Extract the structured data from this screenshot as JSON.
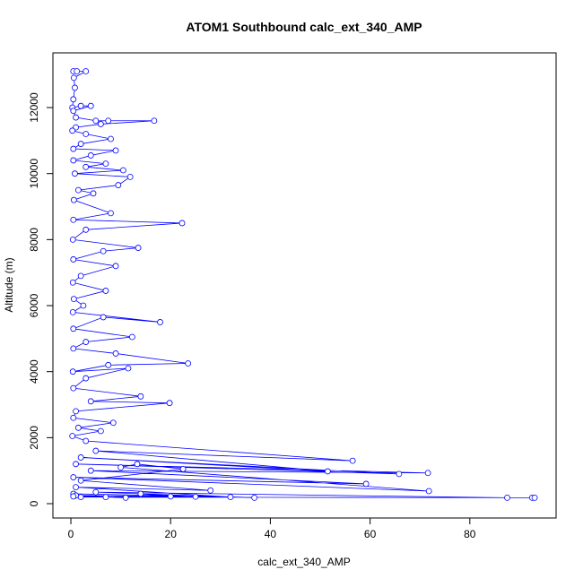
{
  "chart_data": {
    "type": "line",
    "title": "ATOM1 Southbound calc_ext_340_AMP",
    "x_label": "calc_ext_340_AMP",
    "y_label": "Altitude (m)",
    "color": "#0000ff",
    "x": [
      0.5,
      1.2,
      3,
      0.6,
      0.8,
      0.5,
      0.3,
      2,
      4,
      0.5,
      1,
      5,
      7.5,
      16.7,
      6,
      1,
      0.3,
      3,
      8,
      2,
      0.5,
      9,
      4,
      0.5,
      7,
      3,
      10.5,
      0.8,
      11.9,
      9.5,
      1.5,
      4.5,
      0.6,
      8,
      0.5,
      22.3,
      3,
      0.4,
      13.5,
      6.5,
      0.5,
      9,
      2,
      0.4,
      7,
      0.6,
      2.5,
      0.4,
      17.9,
      6.5,
      0.5,
      12.3,
      3,
      0.5,
      9,
      23.5,
      7.5,
      0.4,
      11.5,
      3,
      0.5,
      14,
      4,
      19.8,
      1,
      0.5,
      8.5,
      1.5,
      6,
      0.3,
      3,
      56.5,
      5,
      51.5,
      2,
      65.8,
      1,
      71.6,
      4,
      59.2,
      0.5,
      71.8,
      10,
      13.3,
      22.5,
      2,
      28,
      1,
      32,
      0.5,
      36.8,
      5,
      87.5,
      92.5,
      93,
      2,
      20,
      14,
      25,
      1,
      11,
      7,
      0.5
    ],
    "values": [
      13100,
      13100,
      13100,
      12900,
      12600,
      12250,
      12000,
      12050,
      12050,
      11900,
      11700,
      11600,
      11600,
      11600,
      11500,
      11400,
      11300,
      11200,
      11050,
      10900,
      10750,
      10700,
      10550,
      10400,
      10300,
      10200,
      10100,
      10000,
      9900,
      9650,
      9500,
      9400,
      9200,
      8800,
      8600,
      8500,
      8300,
      8000,
      7750,
      7650,
      7400,
      7200,
      6900,
      6700,
      6450,
      6200,
      6000,
      5800,
      5500,
      5650,
      5300,
      5050,
      4900,
      4700,
      4550,
      4250,
      4200,
      4000,
      4100,
      3800,
      3500,
      3250,
      3100,
      3050,
      2800,
      2600,
      2450,
      2300,
      2200,
      2050,
      1900,
      1300,
      1600,
      980,
      1400,
      900,
      1200,
      930,
      1000,
      600,
      800,
      380,
      1100,
      1200,
      1050,
      700,
      400,
      500,
      200,
      300,
      180,
      350,
      180,
      180,
      180,
      200,
      220,
      300,
      210,
      250,
      180,
      200,
      220
    ],
    "xlim": [
      -3.6,
      97.3
    ],
    "ylim": [
      -434,
      13657
    ],
    "xticks": [
      0,
      20,
      40,
      60,
      80
    ],
    "yticks": [
      0,
      2000,
      4000,
      6000,
      8000,
      10000,
      12000
    ]
  }
}
